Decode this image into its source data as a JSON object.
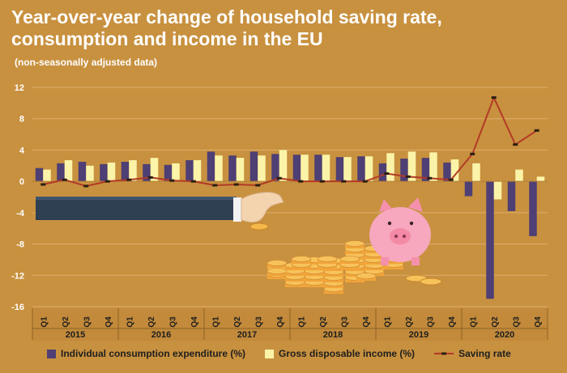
{
  "title_line1": "Year-over-year change of household saving rate,",
  "title_line2": "consumption and income in the EU",
  "subtitle": "(non-seasonally adjusted data)",
  "legend": {
    "consumption": "Individual consumption expenditure (%)",
    "income": "Gross disposable income (%)",
    "saving": "Saving rate"
  },
  "colors": {
    "background": "#c8913f",
    "consumption": "#4e3f74",
    "income": "#fbf4a8",
    "saving_line": "#b23a26",
    "marker": "#2a1e12",
    "grid": "#dcae6c"
  },
  "chart_data": {
    "type": "bar",
    "title": "Year-over-year change of household saving rate, consumption and income in the EU",
    "subtitle": "(non-seasonally adjusted data)",
    "categories": [
      "Q1",
      "Q2",
      "Q3",
      "Q4",
      "Q1",
      "Q2",
      "Q3",
      "Q4",
      "Q1",
      "Q2",
      "Q3",
      "Q4",
      "Q1",
      "Q2",
      "Q3",
      "Q4",
      "Q1",
      "Q2",
      "Q3",
      "Q4",
      "Q1",
      "Q2",
      "Q3",
      "Q4"
    ],
    "year_groups": [
      {
        "label": "2015",
        "start": 0,
        "end": 3
      },
      {
        "label": "2016",
        "start": 4,
        "end": 7
      },
      {
        "label": "2017",
        "start": 8,
        "end": 11
      },
      {
        "label": "2018",
        "start": 12,
        "end": 15
      },
      {
        "label": "2019",
        "start": 16,
        "end": 19
      },
      {
        "label": "2020",
        "start": 20,
        "end": 23
      }
    ],
    "series": [
      {
        "name": "Individual consumption expenditure (%)",
        "type": "bar",
        "values": [
          1.7,
          2.3,
          2.5,
          2.2,
          2.5,
          2.2,
          2.1,
          2.7,
          3.8,
          3.3,
          3.8,
          3.5,
          3.4,
          3.4,
          3.1,
          3.2,
          2.3,
          2.9,
          3.0,
          2.4,
          -1.9,
          -15.0,
          -3.8,
          -7.0
        ]
      },
      {
        "name": "Gross disposable income (%)",
        "type": "bar",
        "values": [
          1.5,
          2.7,
          2.0,
          2.4,
          2.7,
          3.0,
          2.3,
          2.7,
          3.3,
          3.0,
          3.3,
          4.0,
          3.4,
          3.4,
          3.1,
          3.2,
          3.6,
          3.8,
          3.7,
          2.8,
          2.3,
          -2.3,
          1.5,
          0.6
        ]
      },
      {
        "name": "Saving rate",
        "type": "line",
        "values": [
          -0.4,
          0.2,
          -0.6,
          0.0,
          0.2,
          0.5,
          0.1,
          0.0,
          -0.5,
          -0.4,
          -0.5,
          0.4,
          0.0,
          0.0,
          0.0,
          0.0,
          1.0,
          0.6,
          0.4,
          0.2,
          3.5,
          10.7,
          4.7,
          6.5
        ]
      }
    ],
    "yticks": [
      12,
      8,
      4,
      0,
      -4,
      -8,
      -12,
      -16
    ],
    "ylim": [
      -16,
      12
    ],
    "grid": true,
    "legend_position": "bottom"
  }
}
